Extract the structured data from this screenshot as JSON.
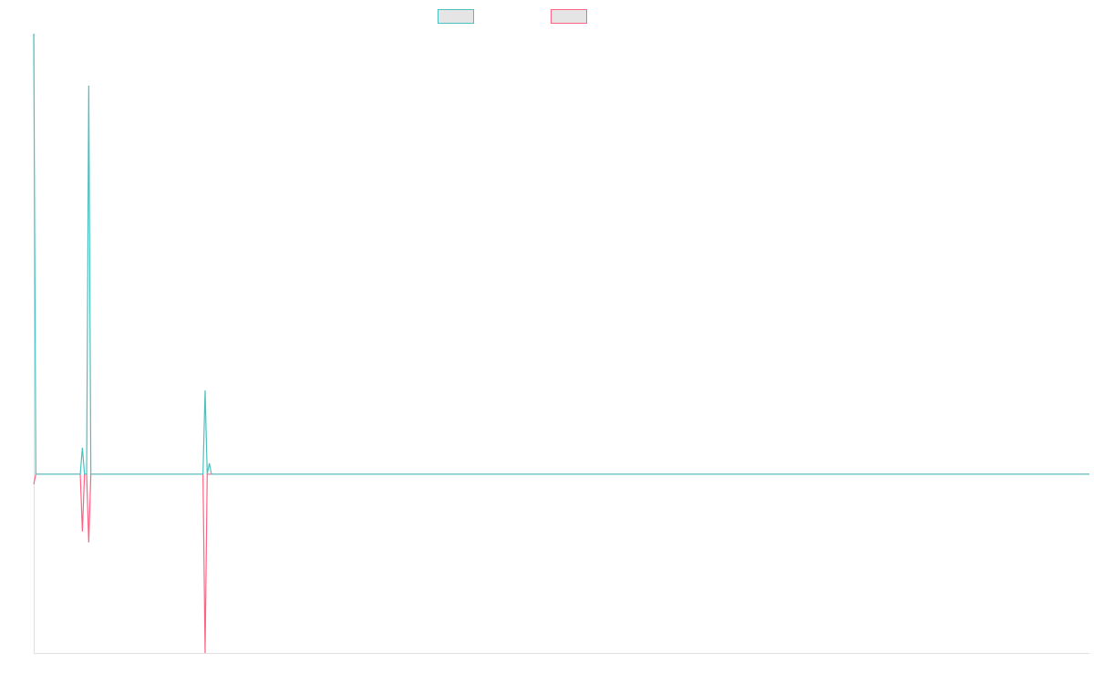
{
  "chart_data": {
    "type": "line",
    "title": "",
    "xlabel": "",
    "ylabel": "",
    "xlim": [
      0,
      499
    ],
    "ylim": [
      -0.406,
      1.0
    ],
    "grid": false,
    "legend_placement": "top",
    "series": [
      {
        "color": "#4bc0c0",
        "points": [
          [
            0,
            1.0
          ],
          [
            1,
            0
          ],
          [
            22,
            0
          ],
          [
            23,
            0.06
          ],
          [
            24,
            0
          ],
          [
            25,
            0
          ],
          [
            26,
            0.882
          ],
          [
            27,
            0
          ],
          [
            80,
            0
          ],
          [
            81,
            0.19
          ],
          [
            82,
            0
          ],
          [
            83,
            0.025
          ],
          [
            84,
            0
          ],
          [
            499,
            0
          ]
        ]
      },
      {
        "color": "#ff6384",
        "points": [
          [
            0,
            -0.023
          ],
          [
            1,
            0
          ],
          [
            22,
            0
          ],
          [
            23,
            -0.13
          ],
          [
            24,
            0
          ],
          [
            25,
            0
          ],
          [
            26,
            -0.155
          ],
          [
            27,
            0
          ],
          [
            80,
            0
          ],
          [
            81,
            -0.406
          ],
          [
            82,
            0
          ],
          [
            499,
            0
          ]
        ]
      }
    ]
  }
}
